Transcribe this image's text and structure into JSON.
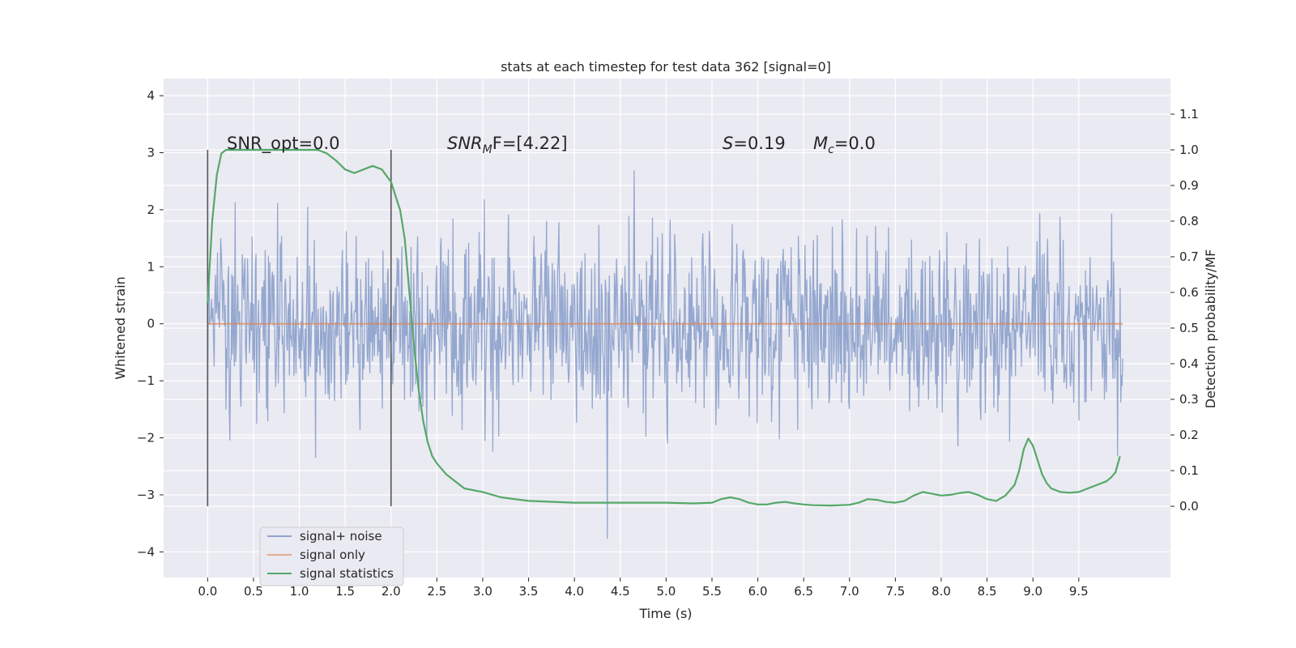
{
  "chart_data": {
    "type": "line",
    "title": "stats at each timestep for test data 362 [signal=0]",
    "xlabel": "Time (s)",
    "ylabel": "Whitened strain",
    "y2label": "Detection probability/MF",
    "xlim": [
      -0.48,
      10.5
    ],
    "ylim": [
      -4.45,
      4.3
    ],
    "y2lim": [
      -0.2,
      1.2
    ],
    "grid": true,
    "legend_placement": "lower-left",
    "x_ticks": [
      "0.0",
      "0.5",
      "1.0",
      "1.5",
      "2.0",
      "2.5",
      "3.0",
      "3.5",
      "4.0",
      "4.5",
      "5.0",
      "5.5",
      "6.0",
      "6.5",
      "7.0",
      "7.5",
      "8.0",
      "8.5",
      "9.0",
      "9.5"
    ],
    "y_ticks": [
      "4",
      "3",
      "2",
      "1",
      "0",
      "−1",
      "−2",
      "−3",
      "−4"
    ],
    "y2_ticks": [
      "1.1",
      "1.0",
      "0.9",
      "0.8",
      "0.7",
      "0.6",
      "0.5",
      "0.4",
      "0.3",
      "0.2",
      "0.1",
      "0.0"
    ],
    "annotations": {
      "snr_opt": "SNR_opt=0.0",
      "snr_mf_main": "SNR",
      "snr_mf_sub": "M",
      "snr_mf_rest": "F=[4.22]",
      "s_main": "S",
      "s_rest": "=0.19",
      "mc_main": "M",
      "mc_sub": "c",
      "mc_rest": "=0.0"
    },
    "window_markers": [
      0.0,
      2.0
    ],
    "window_marker_range": [
      -3.2,
      3.05
    ],
    "colors": {
      "signal_noise": "#8fa3cc",
      "signal_only": "#dd8452",
      "signal_statistics": "#55a868",
      "marker": "#555555",
      "background": "#eaeaf2",
      "grid": "#ffffff"
    },
    "series": [
      {
        "name": "signal+ noise",
        "axis": "left",
        "description_range": [
          -4.0,
          3.9
        ],
        "x_start": 0.0,
        "x_end": 9.98
      },
      {
        "name": "signal only",
        "axis": "left",
        "x": [
          0.0,
          9.98
        ],
        "y": [
          0.0,
          0.0
        ]
      },
      {
        "name": "signal statistics",
        "axis": "right",
        "x": [
          0.0,
          0.05,
          0.1,
          0.15,
          0.2,
          0.3,
          0.5,
          0.7,
          0.9,
          1.1,
          1.2,
          1.3,
          1.4,
          1.5,
          1.6,
          1.7,
          1.8,
          1.9,
          2.0,
          2.05,
          2.1,
          2.15,
          2.2,
          2.25,
          2.3,
          2.35,
          2.4,
          2.45,
          2.5,
          2.6,
          2.7,
          2.8,
          3.0,
          3.2,
          3.5,
          4.0,
          4.5,
          5.0,
          5.3,
          5.5,
          5.6,
          5.7,
          5.8,
          5.9,
          6.0,
          6.1,
          6.2,
          6.3,
          6.4,
          6.5,
          6.6,
          6.8,
          7.0,
          7.1,
          7.2,
          7.3,
          7.4,
          7.5,
          7.6,
          7.7,
          7.8,
          7.9,
          8.0,
          8.1,
          8.2,
          8.3,
          8.4,
          8.5,
          8.6,
          8.7,
          8.8,
          8.85,
          8.9,
          8.95,
          9.0,
          9.05,
          9.1,
          9.15,
          9.2,
          9.3,
          9.4,
          9.5,
          9.6,
          9.7,
          9.8,
          9.85,
          9.9,
          9.95
        ],
        "y": [
          0.57,
          0.8,
          0.93,
          0.99,
          1.0,
          1.0,
          1.0,
          1.0,
          1.0,
          1.0,
          1.0,
          0.99,
          0.97,
          0.945,
          0.935,
          0.945,
          0.955,
          0.945,
          0.91,
          0.87,
          0.83,
          0.75,
          0.6,
          0.45,
          0.33,
          0.24,
          0.18,
          0.14,
          0.12,
          0.09,
          0.07,
          0.05,
          0.04,
          0.025,
          0.015,
          0.01,
          0.01,
          0.01,
          0.008,
          0.01,
          0.02,
          0.025,
          0.02,
          0.01,
          0.005,
          0.005,
          0.01,
          0.012,
          0.008,
          0.005,
          0.003,
          0.002,
          0.004,
          0.01,
          0.02,
          0.018,
          0.012,
          0.01,
          0.015,
          0.03,
          0.04,
          0.035,
          0.03,
          0.032,
          0.037,
          0.04,
          0.032,
          0.02,
          0.015,
          0.03,
          0.06,
          0.1,
          0.16,
          0.19,
          0.17,
          0.13,
          0.09,
          0.065,
          0.05,
          0.04,
          0.038,
          0.04,
          0.05,
          0.06,
          0.07,
          0.08,
          0.095,
          0.14
        ]
      }
    ]
  },
  "legend": {
    "items": [
      "signal+ noise",
      "signal only",
      "signal statistics"
    ]
  }
}
